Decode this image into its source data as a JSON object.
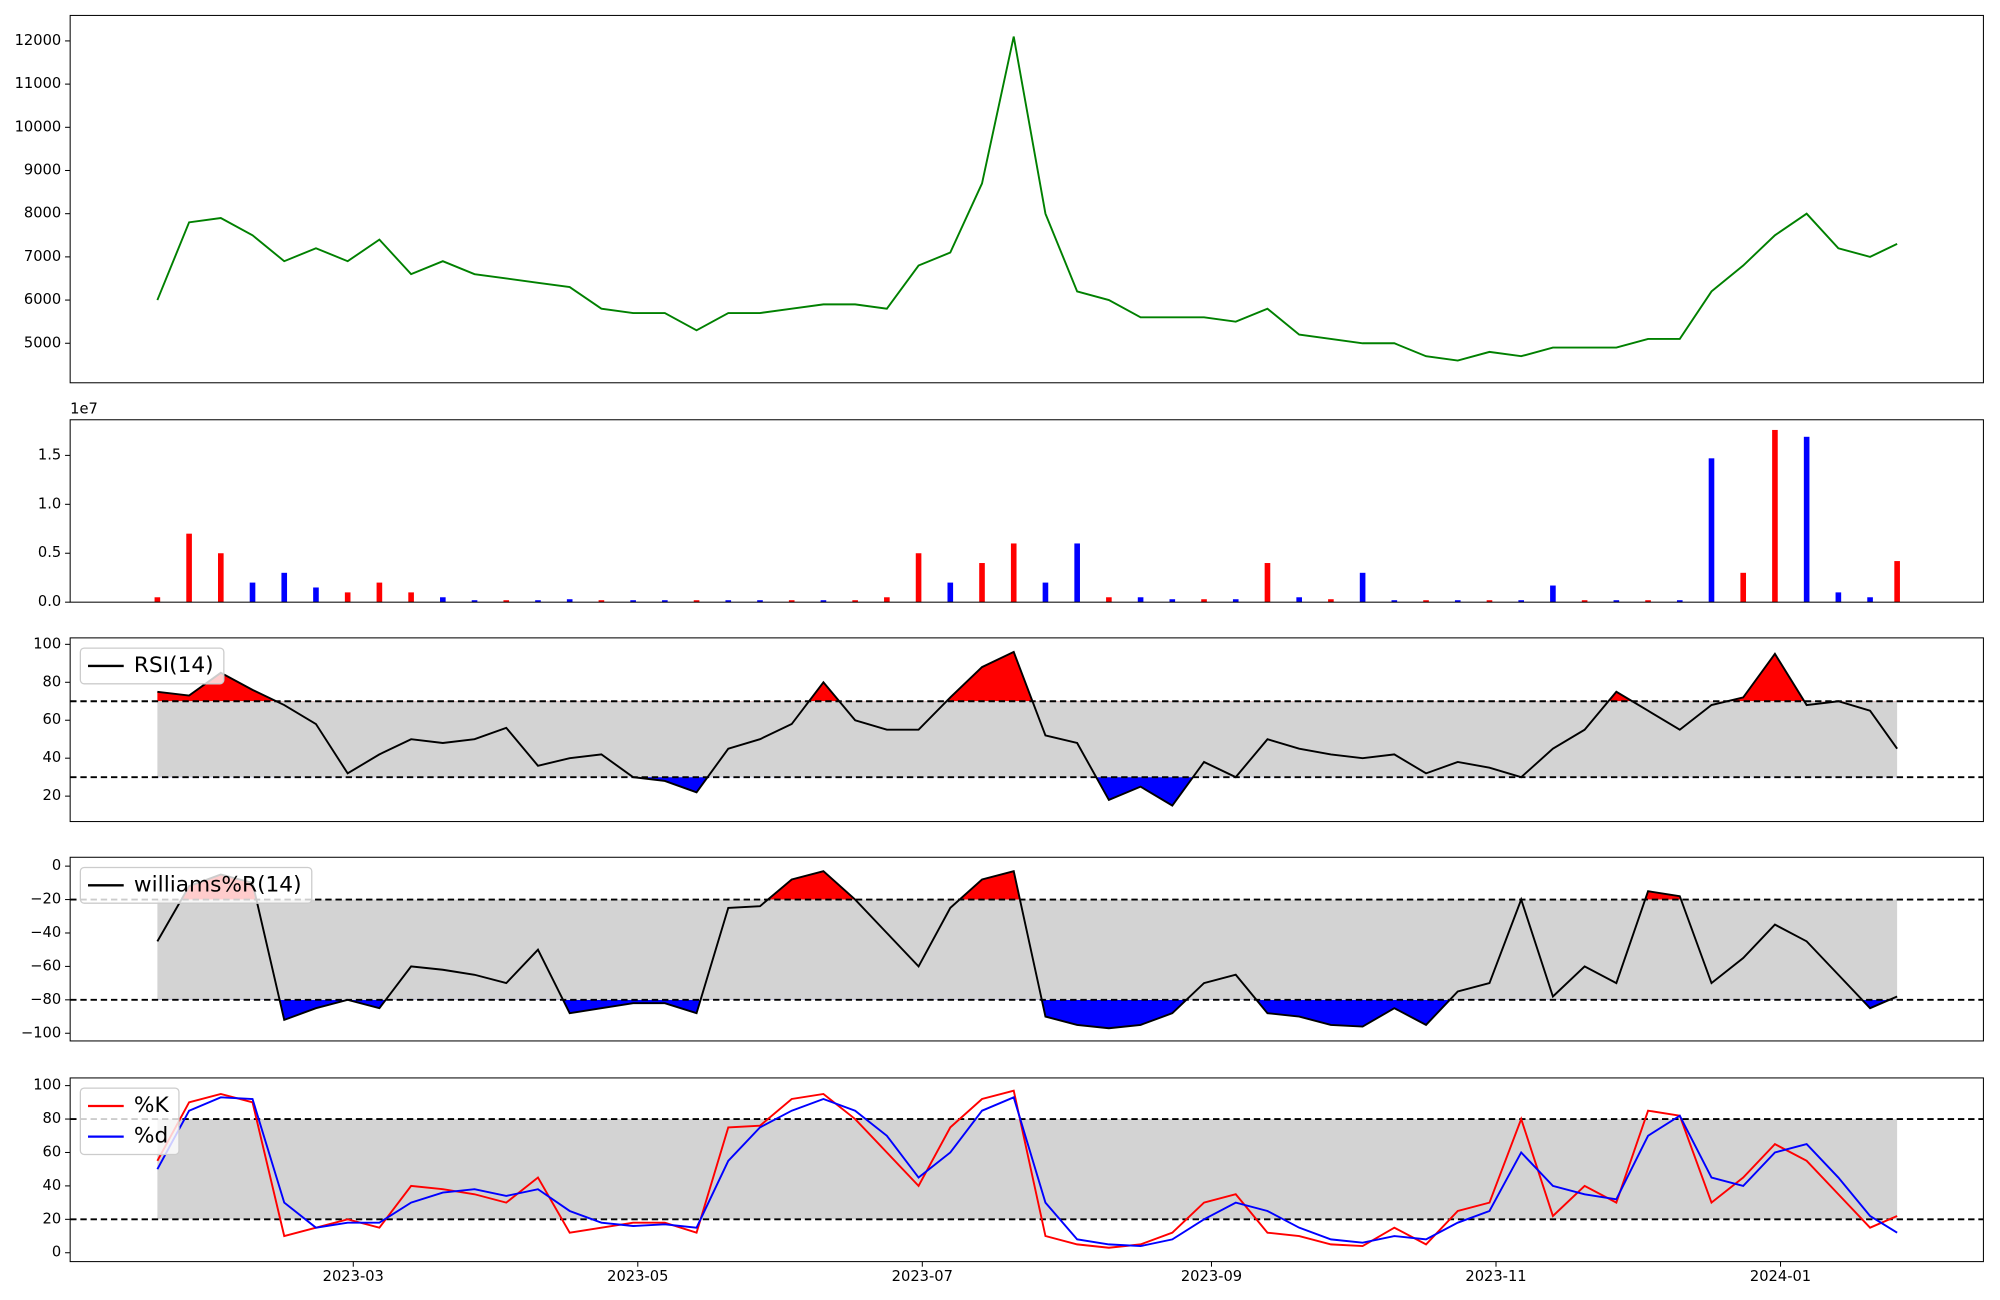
{
  "chart_data": [
    {
      "type": "line",
      "color": "green",
      "x": [
        17,
        23.8,
        30.6,
        37.4,
        44.2,
        51,
        57.8,
        64.6,
        71.4,
        78.2,
        85,
        91.8,
        98.6,
        105.4,
        112.2,
        119,
        125.8,
        132.6,
        139.4,
        146.2,
        153,
        159.8,
        166.6,
        173.4,
        180.2,
        187,
        193.8,
        200.6,
        207.4,
        214.2,
        221,
        227.8,
        234.6,
        241.4,
        248.2,
        255,
        261.8,
        268.6,
        275.4,
        282.2,
        289,
        295.8,
        302.6,
        309.4,
        316.2,
        323,
        329.8,
        336.6,
        343.4,
        350.2,
        357,
        363.8,
        370.6,
        377.4,
        384.2,
        390
      ],
      "values": [
        6000,
        7800,
        7900,
        7500,
        6900,
        7200,
        6900,
        7400,
        6600,
        6900,
        6600,
        6500,
        6400,
        6300,
        5800,
        5700,
        5700,
        5300,
        5700,
        5700,
        5800,
        5900,
        5900,
        5800,
        6800,
        7100,
        8700,
        12100,
        8000,
        6200,
        6000,
        5600,
        5600,
        5600,
        5500,
        5800,
        5200,
        5100,
        5000,
        5000,
        4700,
        4600,
        4800,
        4700,
        4900,
        4900,
        4900,
        5100,
        5100,
        6200,
        6800,
        7500,
        8000,
        7200,
        7000,
        7300
      ],
      "xlim": [
        -1.7,
        408.5
      ],
      "ylim": [
        4085,
        12590
      ],
      "yticks": [
        5000,
        6000,
        7000,
        8000,
        9000,
        10000,
        11000,
        12000
      ]
    },
    {
      "type": "bar",
      "offset_label": "1e7",
      "x": [
        17,
        23.8,
        30.6,
        37.4,
        44.2,
        51,
        57.8,
        64.6,
        71.4,
        78.2,
        85,
        91.8,
        98.6,
        105.4,
        112.2,
        119,
        125.8,
        132.6,
        139.4,
        146.2,
        153,
        159.8,
        166.6,
        173.4,
        180.2,
        187,
        193.8,
        200.6,
        207.4,
        214.2,
        221,
        227.8,
        234.6,
        241.4,
        248.2,
        255,
        261.8,
        268.6,
        275.4,
        282.2,
        289,
        295.8,
        302.6,
        309.4,
        316.2,
        323,
        329.8,
        336.6,
        343.4,
        350.2,
        357,
        363.8,
        370.6,
        377.4,
        384.2,
        390
      ],
      "values": [
        0.05,
        0.7,
        0.5,
        0.2,
        0.3,
        0.15,
        0.1,
        0.2,
        0.1,
        0.05,
        0.02,
        0.02,
        0.02,
        0.03,
        0.02,
        0.02,
        0.02,
        0.02,
        0.02,
        0.02,
        0.02,
        0.02,
        0.02,
        0.05,
        0.5,
        0.2,
        0.4,
        0.6,
        0.2,
        0.6,
        0.05,
        0.05,
        0.03,
        0.03,
        0.03,
        0.4,
        0.05,
        0.03,
        0.3,
        0.02,
        0.02,
        0.02,
        0.02,
        0.02,
        0.17,
        0.02,
        0.02,
        0.02,
        0.02,
        1.47,
        0.3,
        1.76,
        1.69,
        0.1,
        0.05,
        0.42
      ],
      "colors": [
        "red",
        "red",
        "red",
        "blue",
        "blue",
        "blue",
        "red",
        "red",
        "red",
        "blue",
        "blue",
        "red",
        "blue",
        "blue",
        "red",
        "blue",
        "blue",
        "red",
        "blue",
        "blue",
        "red",
        "blue",
        "red",
        "red",
        "red",
        "blue",
        "red",
        "red",
        "blue",
        "blue",
        "red",
        "blue",
        "blue",
        "red",
        "blue",
        "red",
        "blue",
        "red",
        "blue",
        "blue",
        "red",
        "blue",
        "red",
        "blue",
        "blue",
        "red",
        "blue",
        "red",
        "blue",
        "blue",
        "red",
        "red",
        "blue",
        "blue",
        "blue",
        "red"
      ],
      "xlim": [
        -1.7,
        408.5
      ],
      "ylim": [
        0,
        1.864
      ],
      "yticks": [
        {
          "value": 0,
          "label": "0.0"
        },
        0.5,
        {
          "value": 1,
          "label": "1.0"
        },
        1.5
      ]
    },
    {
      "type": "oscillator",
      "legend": "upper left",
      "thresholds": [
        30,
        70
      ],
      "band_color": "lightgray",
      "fill_above": "red",
      "fill_below": "blue",
      "x": [
        17,
        23.8,
        30.6,
        37.4,
        44.2,
        51,
        57.8,
        64.6,
        71.4,
        78.2,
        85,
        91.8,
        98.6,
        105.4,
        112.2,
        119,
        125.8,
        132.6,
        139.4,
        146.2,
        153,
        159.8,
        166.6,
        173.4,
        180.2,
        187,
        193.8,
        200.6,
        207.4,
        214.2,
        221,
        227.8,
        234.6,
        241.4,
        248.2,
        255,
        261.8,
        268.6,
        275.4,
        282.2,
        289,
        295.8,
        302.6,
        309.4,
        316.2,
        323,
        329.8,
        336.6,
        343.4,
        350.2,
        357,
        363.8,
        370.6,
        377.4,
        384.2,
        390
      ],
      "series": [
        {
          "name": "RSI(14)",
          "color": "black",
          "values": [
            75,
            73,
            85,
            76,
            68,
            58,
            32,
            42,
            50,
            48,
            50,
            56,
            36,
            40,
            42,
            30,
            28,
            22,
            45,
            50,
            58,
            80,
            60,
            55,
            55,
            72,
            88,
            96,
            52,
            48,
            18,
            25,
            15,
            38,
            30,
            50,
            45,
            42,
            40,
            42,
            32,
            38,
            35,
            30,
            45,
            55,
            75,
            65,
            55,
            68,
            72,
            95,
            68,
            70,
            65,
            45
          ]
        }
      ],
      "xlim": [
        -1.7,
        408.5
      ],
      "ylim": [
        6.6,
        103.4
      ],
      "yticks": [
        20,
        40,
        60,
        80,
        100
      ]
    },
    {
      "type": "oscillator",
      "legend": "upper left",
      "thresholds": [
        -80,
        -20
      ],
      "band_color": "lightgray",
      "fill_above": "red",
      "fill_below": "blue",
      "x": [
        17,
        23.8,
        30.6,
        37.4,
        44.2,
        51,
        57.8,
        64.6,
        71.4,
        78.2,
        85,
        91.8,
        98.6,
        105.4,
        112.2,
        119,
        125.8,
        132.6,
        139.4,
        146.2,
        153,
        159.8,
        166.6,
        173.4,
        180.2,
        187,
        193.8,
        200.6,
        207.4,
        214.2,
        221,
        227.8,
        234.6,
        241.4,
        248.2,
        255,
        261.8,
        268.6,
        275.4,
        282.2,
        289,
        295.8,
        302.6,
        309.4,
        316.2,
        323,
        329.8,
        336.6,
        343.4,
        350.2,
        357,
        363.8,
        370.6,
        377.4,
        384.2,
        390
      ],
      "series": [
        {
          "name": "williams%R(14)",
          "color": "black",
          "values": [
            -45,
            -12,
            -5,
            -10,
            -92,
            -85,
            -80,
            -85,
            -60,
            -62,
            -65,
            -70,
            -50,
            -88,
            -85,
            -82,
            -82,
            -88,
            -25,
            -24,
            -8,
            -3,
            -20,
            -40,
            -60,
            -25,
            -8,
            -3,
            -90,
            -95,
            -97,
            -95,
            -88,
            -70,
            -65,
            -88,
            -90,
            -95,
            -96,
            -85,
            -95,
            -75,
            -70,
            -20,
            -78,
            -60,
            -70,
            -15,
            -18,
            -70,
            -55,
            -35,
            -45,
            -65,
            -85,
            -78
          ]
        }
      ],
      "xlim": [
        -1.7,
        408.5
      ],
      "ylim": [
        -104.6,
        5.3
      ],
      "yticks": [
        {
          "value": -100,
          "label": "−100"
        },
        {
          "value": -80,
          "label": "−80"
        },
        {
          "value": -60,
          "label": "−60"
        },
        {
          "value": -40,
          "label": "−40"
        },
        {
          "value": -20,
          "label": "−20"
        },
        0
      ]
    },
    {
      "type": "oscillator",
      "legend": "upper left",
      "thresholds": [
        20,
        80
      ],
      "band_color": "lightgray",
      "x": [
        17,
        23.8,
        30.6,
        37.4,
        44.2,
        51,
        57.8,
        64.6,
        71.4,
        78.2,
        85,
        91.8,
        98.6,
        105.4,
        112.2,
        119,
        125.8,
        132.6,
        139.4,
        146.2,
        153,
        159.8,
        166.6,
        173.4,
        180.2,
        187,
        193.8,
        200.6,
        207.4,
        214.2,
        221,
        227.8,
        234.6,
        241.4,
        248.2,
        255,
        261.8,
        268.6,
        275.4,
        282.2,
        289,
        295.8,
        302.6,
        309.4,
        316.2,
        323,
        329.8,
        336.6,
        343.4,
        350.2,
        357,
        363.8,
        370.6,
        377.4,
        384.2,
        390
      ],
      "series": [
        {
          "name": "%K",
          "color": "red",
          "values": [
            55,
            90,
            95,
            90,
            10,
            15,
            20,
            15,
            40,
            38,
            35,
            30,
            45,
            12,
            15,
            18,
            18,
            12,
            75,
            76,
            92,
            95,
            80,
            60,
            40,
            75,
            92,
            97,
            10,
            5,
            3,
            5,
            12,
            30,
            35,
            12,
            10,
            5,
            4,
            15,
            5,
            25,
            30,
            80,
            22,
            40,
            30,
            85,
            82,
            30,
            45,
            65,
            55,
            35,
            15,
            22
          ]
        },
        {
          "name": "%d",
          "color": "blue",
          "values": [
            50,
            85,
            93,
            92,
            30,
            15,
            18,
            18,
            30,
            36,
            38,
            34,
            38,
            25,
            18,
            16,
            17,
            15,
            55,
            75,
            85,
            92,
            85,
            70,
            45,
            60,
            85,
            93,
            30,
            8,
            5,
            4,
            8,
            20,
            30,
            25,
            15,
            8,
            6,
            10,
            8,
            18,
            25,
            60,
            40,
            35,
            32,
            70,
            82,
            45,
            40,
            60,
            65,
            45,
            22,
            12
          ]
        }
      ],
      "xlim": [
        -1.7,
        408.5
      ],
      "ylim": [
        -5.3,
        104.6
      ],
      "yticks": [
        0,
        20,
        40,
        60,
        80,
        100
      ],
      "xticks": [
        {
          "value": 59,
          "label": "2023-03"
        },
        {
          "value": 120,
          "label": "2023-05"
        },
        {
          "value": 181,
          "label": "2023-07"
        },
        {
          "value": 243,
          "label": "2023-09"
        },
        {
          "value": 304,
          "label": "2023-11"
        },
        {
          "value": 365,
          "label": "2024-01"
        }
      ]
    }
  ]
}
